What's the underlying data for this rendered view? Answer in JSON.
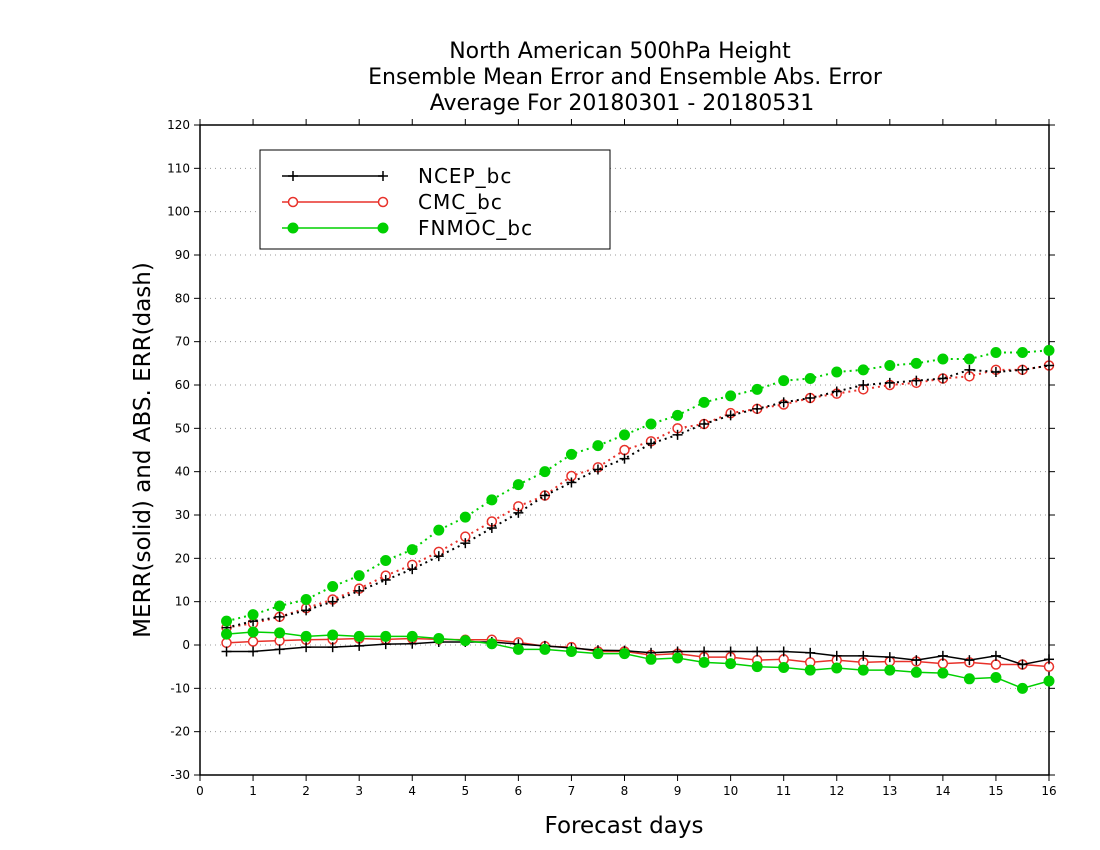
{
  "chart_data": {
    "type": "line",
    "title": [
      "North American 500hPa Height",
      "Ensemble Mean Error and Ensemble Abs. Error",
      "Average For 20180301 - 20180531"
    ],
    "xlabel": "Forecast days",
    "ylabel": "MERR(solid) and ABS. ERR(dash)",
    "xlim": [
      0,
      16
    ],
    "ylim": [
      -30,
      120
    ],
    "xticks": [
      0,
      1,
      2,
      3,
      4,
      5,
      6,
      7,
      8,
      9,
      10,
      11,
      12,
      13,
      14,
      15,
      16
    ],
    "yticks": [
      -30,
      -20,
      -10,
      0,
      10,
      20,
      30,
      40,
      50,
      60,
      70,
      80,
      90,
      100,
      110,
      120
    ],
    "grid": "horizontal dotted",
    "legend_position": "top-left",
    "x": [
      0.5,
      1,
      1.5,
      2,
      2.5,
      3,
      3.5,
      4,
      4.5,
      5,
      5.5,
      6,
      6.5,
      7,
      7.5,
      8,
      8.5,
      9,
      9.5,
      10,
      10.5,
      11,
      11.5,
      12,
      12.5,
      13,
      13.5,
      14,
      14.5,
      15,
      15.5,
      16
    ],
    "series": [
      {
        "name": "NCEP_bc",
        "color": "#000000",
        "marker": "plus",
        "merr": [
          -1.5,
          -1.5,
          -1,
          -0.5,
          -0.5,
          -0.2,
          0.2,
          0.3,
          0.7,
          0.7,
          0.7,
          0.2,
          -0.2,
          -0.7,
          -1.2,
          -1.3,
          -1.8,
          -1.5,
          -1.5,
          -1.5,
          -1.5,
          -1.5,
          -1.8,
          -2.5,
          -2.5,
          -2.8,
          -3.5,
          -2.5,
          -3.5,
          -2.5,
          -4.5,
          -3.3
        ],
        "abs_err": [
          4,
          5.5,
          6.5,
          8,
          10,
          12.5,
          15,
          17.5,
          20.5,
          23.5,
          27,
          30.5,
          34.5,
          37.5,
          40.5,
          43,
          46.5,
          48.5,
          51,
          53,
          54.5,
          56,
          57,
          58.5,
          60,
          60.5,
          61,
          61.5,
          63.5,
          63,
          63.5,
          64.5
        ]
      },
      {
        "name": "CMC_bc",
        "color": "#e8312a",
        "marker": "open-circle",
        "merr": [
          0.5,
          0.8,
          1,
          1.2,
          1.3,
          1.5,
          1.3,
          1.5,
          1.3,
          1.2,
          1.2,
          0.6,
          -0.3,
          -0.5,
          -1.5,
          -1.5,
          -2.3,
          -2,
          -2.8,
          -2.8,
          -3.5,
          -3.3,
          -4,
          -3.5,
          -4,
          -3.8,
          -3.8,
          -4.3,
          -4,
          -4.5,
          -4.5,
          -5
        ]
      },
      {
        "name": "FNMOC_bc",
        "color": "#00d000",
        "marker": "filled-circle",
        "merr": [
          2.5,
          3,
          2.8,
          2,
          2.3,
          2,
          2,
          2,
          1.5,
          1,
          0.3,
          -1,
          -1,
          -1.5,
          -2,
          -2,
          -3.3,
          -3,
          -4,
          -4.3,
          -5,
          -5.2,
          -5.8,
          -5.3,
          -5.8,
          -5.8,
          -6.3,
          -6.5,
          -7.8,
          -7.5,
          -10,
          -8.3
        ],
        "abs_err": [
          5.5,
          7,
          9,
          10.5,
          13.5,
          16,
          19.5,
          22,
          26.5,
          29.5,
          33.5,
          37,
          40,
          44,
          46,
          48.5,
          51,
          53,
          56,
          57.5,
          59,
          61,
          61.5,
          63,
          63.5,
          64.5,
          65,
          66,
          66,
          67.5,
          67.5,
          68
        ]
      }
    ],
    "cmc_abs_err": [
      4,
      5,
      6.5,
      8.5,
      10.5,
      13,
      16,
      18.5,
      21.5,
      25,
      28.5,
      32,
      34.5,
      39,
      41,
      45,
      47,
      50,
      51,
      53.5,
      54.5,
      55.5,
      57,
      58,
      59,
      60,
      60.5,
      61.5,
      62,
      63.5,
      63.5,
      64.5
    ]
  }
}
